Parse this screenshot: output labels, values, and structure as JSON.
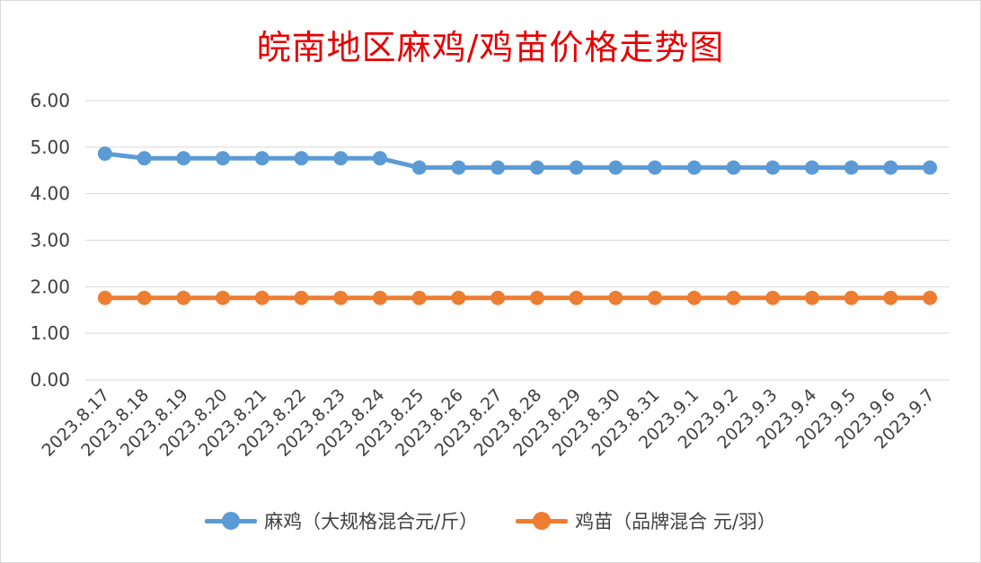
{
  "chart_data": {
    "type": "line",
    "title": "皖南地区麻鸡/鸡苗价格走势图",
    "xlabel": "",
    "ylabel": "",
    "ylim": [
      0,
      6
    ],
    "yticks": [
      "0.00",
      "1.00",
      "2.00",
      "3.00",
      "4.00",
      "5.00",
      "6.00"
    ],
    "grid": true,
    "legend_position": "bottom",
    "categories": [
      "2023.8.17",
      "2023.8.18",
      "2023.8.19",
      "2023.8.20",
      "2023.8.21",
      "2023.8.22",
      "2023.8.23",
      "2023.8.24",
      "2023.8.25",
      "2023.8.26",
      "2023.8.27",
      "2023.8.28",
      "2023.8.29",
      "2023.8.30",
      "2023.8.31",
      "2023.9.1",
      "2023.9.2",
      "2023.9.3",
      "2023.9.4",
      "2023.9.5",
      "2023.9.6",
      "2023.9.7"
    ],
    "series": [
      {
        "name": "麻鸡（大规格混合元/斤）",
        "color": "#5b9bd5",
        "values": [
          4.86,
          4.76,
          4.76,
          4.76,
          4.76,
          4.76,
          4.76,
          4.76,
          4.56,
          4.56,
          4.56,
          4.56,
          4.56,
          4.56,
          4.56,
          4.56,
          4.56,
          4.56,
          4.56,
          4.56,
          4.56,
          4.56
        ]
      },
      {
        "name": "鸡苗（品牌混合 元/羽）",
        "color": "#ed7d31",
        "values": [
          1.76,
          1.76,
          1.76,
          1.76,
          1.76,
          1.76,
          1.76,
          1.76,
          1.76,
          1.76,
          1.76,
          1.76,
          1.76,
          1.76,
          1.76,
          1.76,
          1.76,
          1.76,
          1.76,
          1.76,
          1.76,
          1.76
        ]
      }
    ]
  }
}
